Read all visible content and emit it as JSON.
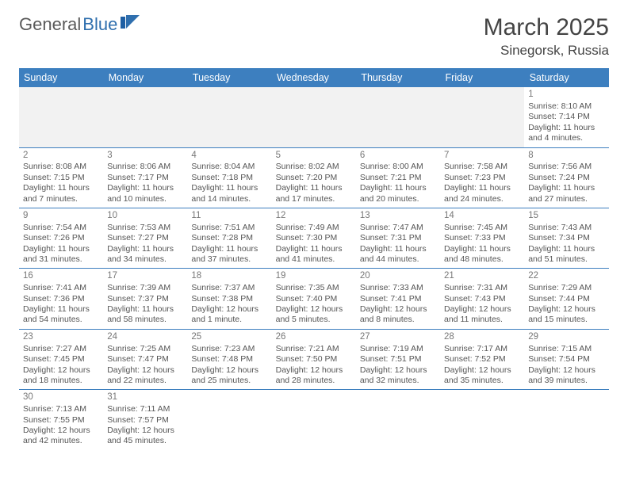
{
  "brand": {
    "part1": "General",
    "part2": "Blue",
    "color_text": "#5a5a5a",
    "color_accent": "#2f6fae"
  },
  "title": "March 2025",
  "location": "Sinegorsk, Russia",
  "header_bg": "#3d7fbf",
  "header_fg": "#ffffff",
  "grid_line_color": "#3d7fbf",
  "empty_bg": "#f2f2f2",
  "cell_text_color": "#555555",
  "font_family": "Arial",
  "day_headers": [
    "Sunday",
    "Monday",
    "Tuesday",
    "Wednesday",
    "Thursday",
    "Friday",
    "Saturday"
  ],
  "weeks": [
    [
      null,
      null,
      null,
      null,
      null,
      null,
      {
        "n": "1",
        "sr": "Sunrise: 8:10 AM",
        "ss": "Sunset: 7:14 PM",
        "d1": "Daylight: 11 hours",
        "d2": "and 4 minutes."
      }
    ],
    [
      {
        "n": "2",
        "sr": "Sunrise: 8:08 AM",
        "ss": "Sunset: 7:15 PM",
        "d1": "Daylight: 11 hours",
        "d2": "and 7 minutes."
      },
      {
        "n": "3",
        "sr": "Sunrise: 8:06 AM",
        "ss": "Sunset: 7:17 PM",
        "d1": "Daylight: 11 hours",
        "d2": "and 10 minutes."
      },
      {
        "n": "4",
        "sr": "Sunrise: 8:04 AM",
        "ss": "Sunset: 7:18 PM",
        "d1": "Daylight: 11 hours",
        "d2": "and 14 minutes."
      },
      {
        "n": "5",
        "sr": "Sunrise: 8:02 AM",
        "ss": "Sunset: 7:20 PM",
        "d1": "Daylight: 11 hours",
        "d2": "and 17 minutes."
      },
      {
        "n": "6",
        "sr": "Sunrise: 8:00 AM",
        "ss": "Sunset: 7:21 PM",
        "d1": "Daylight: 11 hours",
        "d2": "and 20 minutes."
      },
      {
        "n": "7",
        "sr": "Sunrise: 7:58 AM",
        "ss": "Sunset: 7:23 PM",
        "d1": "Daylight: 11 hours",
        "d2": "and 24 minutes."
      },
      {
        "n": "8",
        "sr": "Sunrise: 7:56 AM",
        "ss": "Sunset: 7:24 PM",
        "d1": "Daylight: 11 hours",
        "d2": "and 27 minutes."
      }
    ],
    [
      {
        "n": "9",
        "sr": "Sunrise: 7:54 AM",
        "ss": "Sunset: 7:26 PM",
        "d1": "Daylight: 11 hours",
        "d2": "and 31 minutes."
      },
      {
        "n": "10",
        "sr": "Sunrise: 7:53 AM",
        "ss": "Sunset: 7:27 PM",
        "d1": "Daylight: 11 hours",
        "d2": "and 34 minutes."
      },
      {
        "n": "11",
        "sr": "Sunrise: 7:51 AM",
        "ss": "Sunset: 7:28 PM",
        "d1": "Daylight: 11 hours",
        "d2": "and 37 minutes."
      },
      {
        "n": "12",
        "sr": "Sunrise: 7:49 AM",
        "ss": "Sunset: 7:30 PM",
        "d1": "Daylight: 11 hours",
        "d2": "and 41 minutes."
      },
      {
        "n": "13",
        "sr": "Sunrise: 7:47 AM",
        "ss": "Sunset: 7:31 PM",
        "d1": "Daylight: 11 hours",
        "d2": "and 44 minutes."
      },
      {
        "n": "14",
        "sr": "Sunrise: 7:45 AM",
        "ss": "Sunset: 7:33 PM",
        "d1": "Daylight: 11 hours",
        "d2": "and 48 minutes."
      },
      {
        "n": "15",
        "sr": "Sunrise: 7:43 AM",
        "ss": "Sunset: 7:34 PM",
        "d1": "Daylight: 11 hours",
        "d2": "and 51 minutes."
      }
    ],
    [
      {
        "n": "16",
        "sr": "Sunrise: 7:41 AM",
        "ss": "Sunset: 7:36 PM",
        "d1": "Daylight: 11 hours",
        "d2": "and 54 minutes."
      },
      {
        "n": "17",
        "sr": "Sunrise: 7:39 AM",
        "ss": "Sunset: 7:37 PM",
        "d1": "Daylight: 11 hours",
        "d2": "and 58 minutes."
      },
      {
        "n": "18",
        "sr": "Sunrise: 7:37 AM",
        "ss": "Sunset: 7:38 PM",
        "d1": "Daylight: 12 hours",
        "d2": "and 1 minute."
      },
      {
        "n": "19",
        "sr": "Sunrise: 7:35 AM",
        "ss": "Sunset: 7:40 PM",
        "d1": "Daylight: 12 hours",
        "d2": "and 5 minutes."
      },
      {
        "n": "20",
        "sr": "Sunrise: 7:33 AM",
        "ss": "Sunset: 7:41 PM",
        "d1": "Daylight: 12 hours",
        "d2": "and 8 minutes."
      },
      {
        "n": "21",
        "sr": "Sunrise: 7:31 AM",
        "ss": "Sunset: 7:43 PM",
        "d1": "Daylight: 12 hours",
        "d2": "and 11 minutes."
      },
      {
        "n": "22",
        "sr": "Sunrise: 7:29 AM",
        "ss": "Sunset: 7:44 PM",
        "d1": "Daylight: 12 hours",
        "d2": "and 15 minutes."
      }
    ],
    [
      {
        "n": "23",
        "sr": "Sunrise: 7:27 AM",
        "ss": "Sunset: 7:45 PM",
        "d1": "Daylight: 12 hours",
        "d2": "and 18 minutes."
      },
      {
        "n": "24",
        "sr": "Sunrise: 7:25 AM",
        "ss": "Sunset: 7:47 PM",
        "d1": "Daylight: 12 hours",
        "d2": "and 22 minutes."
      },
      {
        "n": "25",
        "sr": "Sunrise: 7:23 AM",
        "ss": "Sunset: 7:48 PM",
        "d1": "Daylight: 12 hours",
        "d2": "and 25 minutes."
      },
      {
        "n": "26",
        "sr": "Sunrise: 7:21 AM",
        "ss": "Sunset: 7:50 PM",
        "d1": "Daylight: 12 hours",
        "d2": "and 28 minutes."
      },
      {
        "n": "27",
        "sr": "Sunrise: 7:19 AM",
        "ss": "Sunset: 7:51 PM",
        "d1": "Daylight: 12 hours",
        "d2": "and 32 minutes."
      },
      {
        "n": "28",
        "sr": "Sunrise: 7:17 AM",
        "ss": "Sunset: 7:52 PM",
        "d1": "Daylight: 12 hours",
        "d2": "and 35 minutes."
      },
      {
        "n": "29",
        "sr": "Sunrise: 7:15 AM",
        "ss": "Sunset: 7:54 PM",
        "d1": "Daylight: 12 hours",
        "d2": "and 39 minutes."
      }
    ],
    [
      {
        "n": "30",
        "sr": "Sunrise: 7:13 AM",
        "ss": "Sunset: 7:55 PM",
        "d1": "Daylight: 12 hours",
        "d2": "and 42 minutes."
      },
      {
        "n": "31",
        "sr": "Sunrise: 7:11 AM",
        "ss": "Sunset: 7:57 PM",
        "d1": "Daylight: 12 hours",
        "d2": "and 45 minutes."
      },
      null,
      null,
      null,
      null,
      null
    ]
  ]
}
